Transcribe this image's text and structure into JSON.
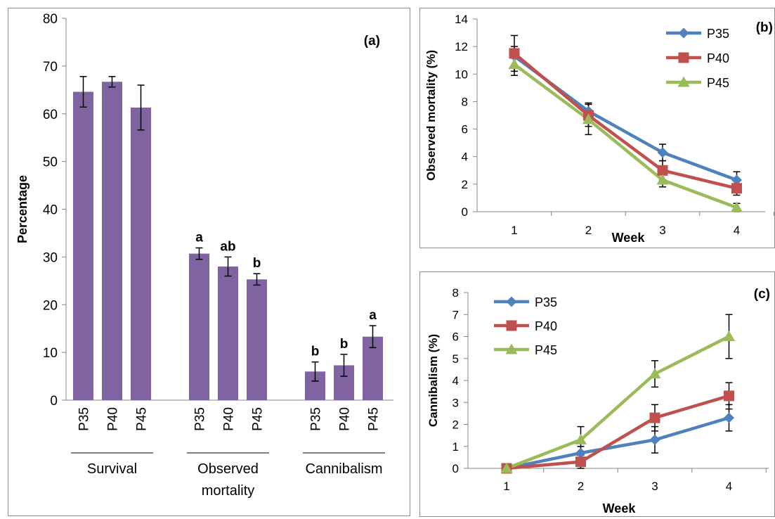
{
  "colors": {
    "bar": "#8064a2",
    "P35": "#4f81bd",
    "P40": "#c0504d",
    "P45": "#9bbb59"
  },
  "chart_data": [
    {
      "id": "a",
      "type": "bar",
      "panel_label": "(a)",
      "ylabel": "Percentage",
      "ylim": [
        0,
        80
      ],
      "yticks": [
        0,
        10,
        20,
        30,
        40,
        50,
        60,
        70,
        80
      ],
      "grid": false,
      "groups": [
        {
          "label": "Survival",
          "bars": [
            {
              "category": "P35",
              "value": 64.6,
              "error": 3.2,
              "letter": ""
            },
            {
              "category": "P40",
              "value": 66.7,
              "error": 1.1,
              "letter": ""
            },
            {
              "category": "P45",
              "value": 61.3,
              "error": 4.7,
              "letter": ""
            }
          ]
        },
        {
          "label": "Observed mortality",
          "bars": [
            {
              "category": "P35",
              "value": 30.7,
              "error": 1.2,
              "letter": "a"
            },
            {
              "category": "P40",
              "value": 28.0,
              "error": 2.0,
              "letter": "ab"
            },
            {
              "category": "P45",
              "value": 25.3,
              "error": 1.2,
              "letter": "b"
            }
          ]
        },
        {
          "label": "Cannibalism",
          "bars": [
            {
              "category": "P35",
              "value": 6.0,
              "error": 2.0,
              "letter": "b"
            },
            {
              "category": "P40",
              "value": 7.3,
              "error": 2.3,
              "letter": "b"
            },
            {
              "category": "P45",
              "value": 13.3,
              "error": 2.3,
              "letter": "a"
            }
          ]
        }
      ]
    },
    {
      "id": "b",
      "type": "line",
      "panel_label": "(b)",
      "xlabel": "Week",
      "ylabel": "Observed mortality (%)",
      "ylim": [
        0,
        14
      ],
      "yticks": [
        0,
        2,
        4,
        6,
        8,
        10,
        12,
        14
      ],
      "x": [
        1,
        2,
        3,
        4
      ],
      "legend_position": "top-right",
      "grid": false,
      "series": [
        {
          "name": "P35",
          "marker": "diamond",
          "values": [
            11.3,
            7.3,
            4.3,
            2.3
          ],
          "errors": [
            0.7,
            0.6,
            0.6,
            0.6
          ]
        },
        {
          "name": "P40",
          "marker": "square",
          "values": [
            11.5,
            7.0,
            3.0,
            1.7
          ],
          "errors": [
            1.3,
            0.8,
            0.7,
            0.5
          ]
        },
        {
          "name": "P45",
          "marker": "triangle",
          "values": [
            10.7,
            6.7,
            2.3,
            0.3
          ],
          "errors": [
            0.8,
            1.1,
            0.5,
            0.3
          ]
        }
      ]
    },
    {
      "id": "c",
      "type": "line",
      "panel_label": "(c)",
      "xlabel": "Week",
      "ylabel": "Cannibalism (%)",
      "ylim": [
        0,
        8
      ],
      "yticks": [
        0,
        1,
        2,
        3,
        4,
        5,
        6,
        7,
        8
      ],
      "x": [
        1,
        2,
        3,
        4
      ],
      "legend_position": "top-left",
      "grid": false,
      "series": [
        {
          "name": "P35",
          "marker": "diamond",
          "values": [
            0.0,
            0.7,
            1.3,
            2.3
          ],
          "errors": [
            0,
            0.3,
            0.6,
            0.6
          ]
        },
        {
          "name": "P40",
          "marker": "square",
          "values": [
            0.0,
            0.3,
            2.3,
            3.3
          ],
          "errors": [
            0,
            0.3,
            0.6,
            0.6
          ]
        },
        {
          "name": "P45",
          "marker": "triangle",
          "values": [
            0.0,
            1.3,
            4.3,
            6.0
          ],
          "errors": [
            0,
            0.6,
            0.6,
            1.0
          ]
        }
      ]
    }
  ]
}
